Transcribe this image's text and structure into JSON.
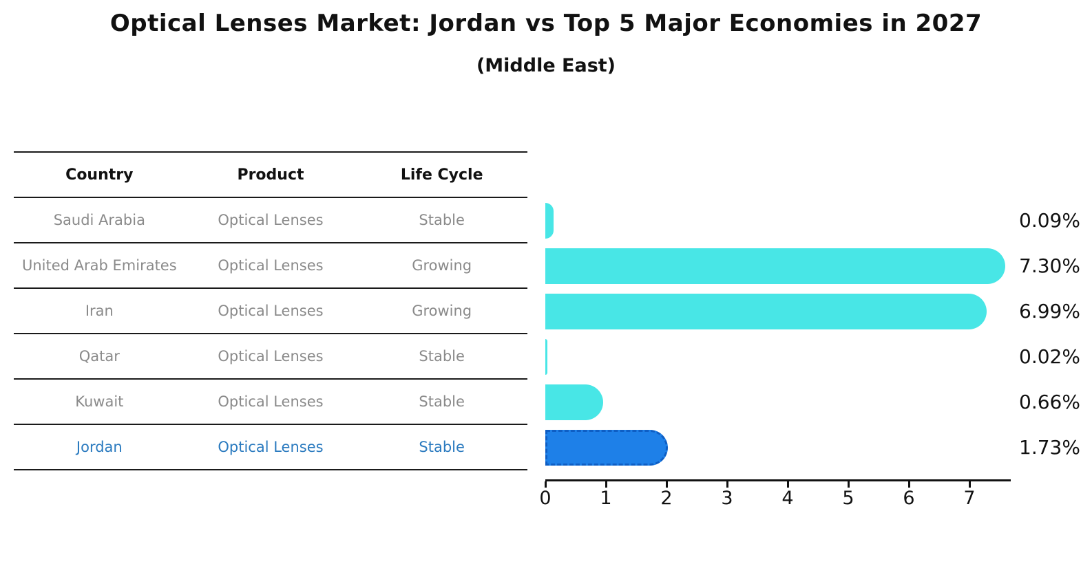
{
  "title": "Optical Lenses Market: Jordan vs Top 5 Major Economies in 2027",
  "subtitle": "(Middle East)",
  "table": {
    "headers": [
      "Country",
      "Product",
      "Life Cycle"
    ],
    "rows": [
      {
        "country": "Saudi Arabia",
        "product": "Optical Lenses",
        "life_cycle": "Stable",
        "highlighted": false
      },
      {
        "country": "United Arab Emirates",
        "product": "Optical Lenses",
        "life_cycle": "Growing",
        "highlighted": false
      },
      {
        "country": "Iran",
        "product": "Optical Lenses",
        "life_cycle": "Growing",
        "highlighted": false
      },
      {
        "country": "Qatar",
        "product": "Optical Lenses",
        "life_cycle": "Stable",
        "highlighted": false
      },
      {
        "country": "Kuwait",
        "product": "Optical Lenses",
        "life_cycle": "Stable",
        "highlighted": false
      },
      {
        "country": "Jordan",
        "product": "Optical Lenses",
        "life_cycle": "Stable",
        "highlighted": true
      }
    ]
  },
  "chart_data": {
    "type": "bar",
    "orientation": "horizontal",
    "title": "Optical Lenses Market: Jordan vs Top 5 Major Economies in 2027",
    "subtitle": "(Middle East)",
    "categories": [
      "Saudi Arabia",
      "United Arab Emirates",
      "Iran",
      "Qatar",
      "Kuwait",
      "Jordan"
    ],
    "values": [
      0.09,
      7.3,
      6.99,
      0.02,
      0.66,
      1.73
    ],
    "value_labels": [
      "0.09%",
      "7.30%",
      "6.99%",
      "0.02%",
      "0.66%",
      "1.73%"
    ],
    "x_ticks": [
      "0",
      "1",
      "2",
      "3",
      "4",
      "5",
      "6",
      "7"
    ],
    "xlim": [
      0,
      7.7
    ],
    "grid": false,
    "legend": false,
    "highlight_index": 5,
    "colors": {
      "bar": "#48e6e6",
      "highlight_bar": "#1e80e8",
      "highlight_border": "#0e5ec4",
      "highlight_text": "#2a7abf",
      "axis": "#111111",
      "header_text": "#111111",
      "muted_text": "#8a8a8a"
    }
  }
}
